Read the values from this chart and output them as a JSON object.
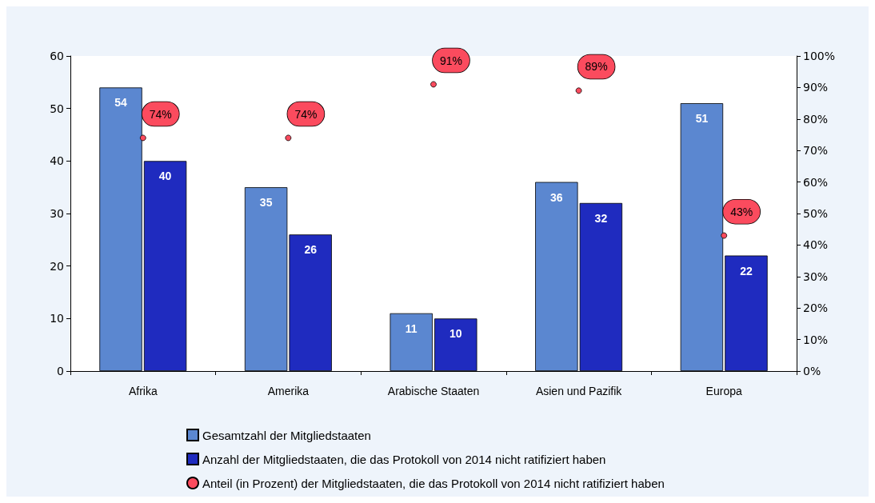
{
  "chart_data": {
    "type": "bar",
    "categories": [
      "Afrika",
      "Amerika",
      "Arabische Staaten",
      "Asien und Pazifik",
      "Europa"
    ],
    "series": [
      {
        "name": "Gesamtzahl der Mitgliedstaaten",
        "color": "#5b87d0",
        "values": [
          54,
          35,
          11,
          36,
          51
        ]
      },
      {
        "name": "Anzahl der Mitgliedstaaten, die das Protokoll von 2014 nicht ratifiziert haben",
        "color": "#1f2bbf",
        "values": [
          40,
          26,
          10,
          32,
          22
        ]
      },
      {
        "name": "Anteil (in Prozent) der Mitgliedstaaten, die das Protokoll von 2014 nicht ratifiziert haben",
        "color": "#fb4b5e",
        "type": "scatter",
        "axis": "y2",
        "x": [
          "Afrika",
          "Amerika",
          "Arabische Staaten",
          "Asien und Pazifik",
          "Europa"
        ],
        "values": [
          74,
          74,
          91,
          89,
          43
        ],
        "value_labels": [
          "74%",
          "74%",
          "91%",
          "89%",
          "43%"
        ]
      }
    ],
    "ylim": [
      0,
      60
    ],
    "yticks": [
      0,
      10,
      20,
      30,
      40,
      50,
      60
    ],
    "y2lim": [
      0,
      100
    ],
    "y2ticks": [
      {
        "value": 0,
        "label": "0%"
      },
      {
        "value": 10,
        "label": "10%"
      },
      {
        "value": 20,
        "label": "20%"
      },
      {
        "value": 30,
        "label": "30%"
      },
      {
        "value": 40,
        "label": "40%"
      },
      {
        "value": 50,
        "label": "50%"
      },
      {
        "value": 60,
        "label": "60%"
      },
      {
        "value": 70,
        "label": "70%"
      },
      {
        "value": 80,
        "label": "80%"
      },
      {
        "value": 90,
        "label": "90%"
      },
      {
        "value": 100,
        "label": "100%"
      }
    ],
    "data_labels": true,
    "legend": "bottom",
    "grid": false
  }
}
